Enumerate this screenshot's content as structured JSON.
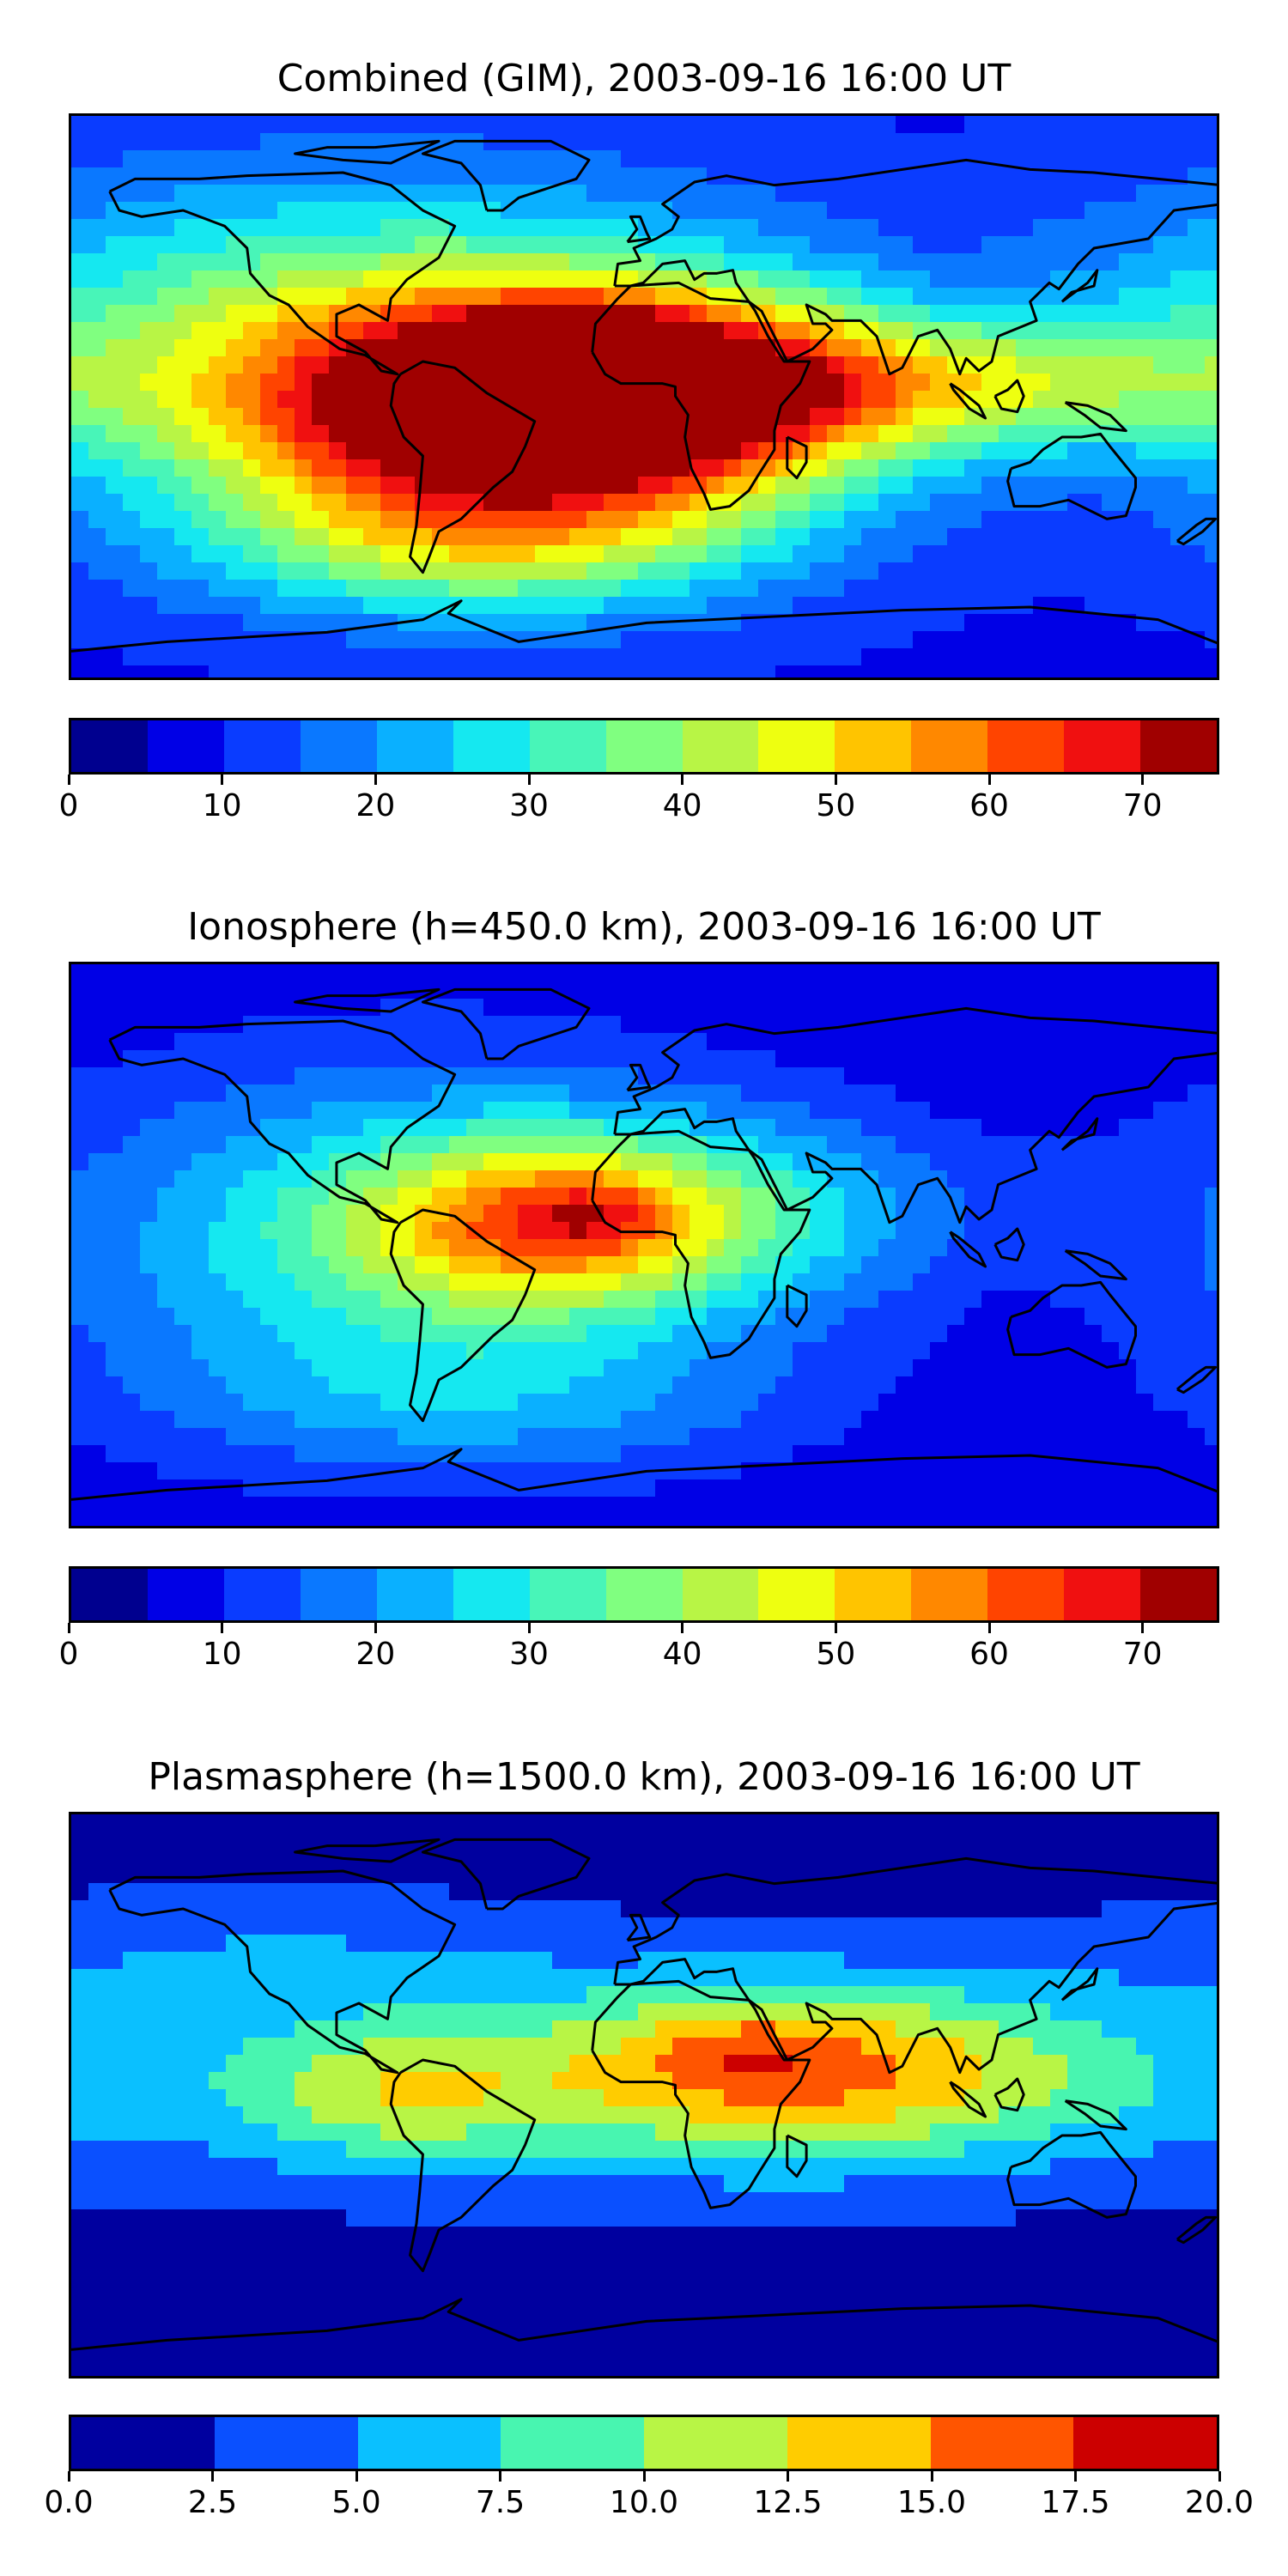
{
  "chart_data": [
    {
      "type": "heatmap",
      "title": "Combined (GIM), 2003-09-16 16:00 UT",
      "colorbar": {
        "levels": [
          0,
          5,
          10,
          15,
          20,
          25,
          30,
          35,
          40,
          45,
          50,
          55,
          60,
          65,
          70,
          75
        ],
        "ticks": [
          0,
          10,
          20,
          30,
          40,
          50,
          60,
          70
        ],
        "tick_labels": [
          "0",
          "10",
          "20",
          "30",
          "40",
          "50",
          "60",
          "70"
        ],
        "colors": [
          "#00008f",
          "#0000e6",
          "#0a3cff",
          "#0a78ff",
          "#0ab0ff",
          "#15e8f0",
          "#48f5b8",
          "#80ff80",
          "#b8f545",
          "#eeff10",
          "#ffc400",
          "#ff8800",
          "#ff4400",
          "#f01010",
          "#a00000"
        ]
      },
      "field": {
        "background": 9,
        "blobs": [
          {
            "lon": -90,
            "lat": 20,
            "value": 30,
            "sx": 95,
            "sy": 35
          },
          {
            "lon": -40,
            "lat": -15,
            "value": 50,
            "sx": 65,
            "sy": 28
          },
          {
            "lon": 0,
            "lat": 5,
            "value": 45,
            "sx": 60,
            "sy": 20
          },
          {
            "lon": 110,
            "lat": 5,
            "value": 22,
            "sx": 55,
            "sy": 14
          },
          {
            "lon": -20,
            "lat": 12,
            "value": 22,
            "sx": 22,
            "sy": 10
          },
          {
            "lon": -60,
            "lat": -50,
            "value": 14,
            "sx": 60,
            "sy": 14
          }
        ]
      }
    },
    {
      "type": "heatmap",
      "title": "Ionosphere  (h=450.0 km), 2003-09-16 16:00 UT",
      "colorbar": {
        "levels": [
          0,
          5,
          10,
          15,
          20,
          25,
          30,
          35,
          40,
          45,
          50,
          55,
          60,
          65,
          70,
          75
        ],
        "ticks": [
          0,
          10,
          20,
          30,
          40,
          50,
          60,
          70
        ],
        "tick_labels": [
          "0",
          "10",
          "20",
          "30",
          "40",
          "50",
          "60",
          "70"
        ],
        "colors": [
          "#00008f",
          "#0000e6",
          "#0a3cff",
          "#0a78ff",
          "#0ab0ff",
          "#15e8f0",
          "#48f5b8",
          "#80ff80",
          "#b8f545",
          "#eeff10",
          "#ffc400",
          "#ff8800",
          "#ff4400",
          "#f01010",
          "#a00000"
        ]
      },
      "field": {
        "background": 6,
        "blobs": [
          {
            "lon": -70,
            "lat": 0,
            "value": 25,
            "sx": 80,
            "sy": 40
          },
          {
            "lon": -30,
            "lat": 8,
            "value": 28,
            "sx": 40,
            "sy": 18
          },
          {
            "lon": -15,
            "lat": 10,
            "value": 8,
            "sx": 12,
            "sy": 6
          },
          {
            "lon": 20,
            "lat": 12,
            "value": 15,
            "sx": 60,
            "sy": 20
          },
          {
            "lon": -50,
            "lat": -50,
            "value": 8,
            "sx": 70,
            "sy": 15
          }
        ]
      }
    },
    {
      "type": "heatmap",
      "title": "Plasmasphere (h=1500.0 km), 2003-09-16 16:00 UT",
      "colorbar": {
        "levels": [
          0,
          2.5,
          5,
          7.5,
          10,
          12.5,
          15,
          17.5,
          20
        ],
        "ticks": [
          0,
          2.5,
          5,
          7.5,
          10,
          12.5,
          15,
          17.5,
          20
        ],
        "tick_labels": [
          "0.0",
          "2.5",
          "5.0",
          "7.5",
          "10.0",
          "12.5",
          "15.0",
          "17.5",
          "20.0"
        ],
        "colors": [
          "#00009f",
          "#0a50ff",
          "#0ac0ff",
          "#48f5b0",
          "#b8f545",
          "#ffcc00",
          "#ff5500",
          "#cc0000"
        ]
      },
      "field": {
        "background": 1.5,
        "blobs": [
          {
            "lon": 0,
            "lat": 5,
            "value": 6,
            "sx": 200,
            "sy": 22
          },
          {
            "lon": 50,
            "lat": 10,
            "value": 9,
            "sx": 60,
            "sy": 20
          },
          {
            "lon": 30,
            "lat": 16,
            "value": 2.5,
            "sx": 18,
            "sy": 8
          },
          {
            "lon": -80,
            "lat": 0,
            "value": 5,
            "sx": 32,
            "sy": 15
          },
          {
            "lon": -120,
            "lat": 45,
            "value": 3,
            "sx": 70,
            "sy": 15
          }
        ]
      }
    }
  ]
}
